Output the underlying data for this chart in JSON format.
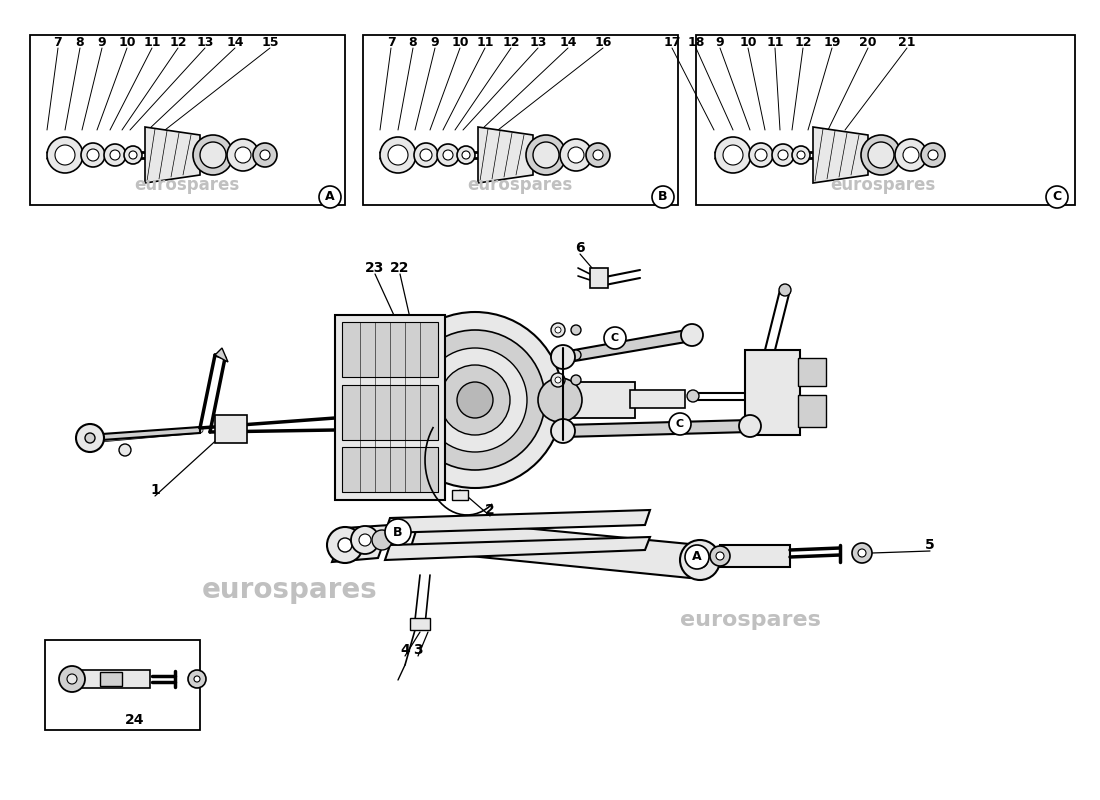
{
  "bg": "#ffffff",
  "lc": "#000000",
  "g1": "#e8e8e8",
  "g2": "#d0d0d0",
  "g3": "#b8b8b8",
  "wm": "eurospares",
  "wmc": "#c0c0c0",
  "panel_A": [
    "7",
    "8",
    "9",
    "10",
    "11",
    "12",
    "13",
    "14",
    "15"
  ],
  "panel_B": [
    "7",
    "8",
    "9",
    "10",
    "11",
    "12",
    "13",
    "14",
    "16"
  ],
  "panel_C": [
    "17",
    "18",
    "9",
    "10",
    "11",
    "12",
    "19",
    "20",
    "21"
  ],
  "fig_w": 11.0,
  "fig_h": 8.0,
  "dpi": 100
}
